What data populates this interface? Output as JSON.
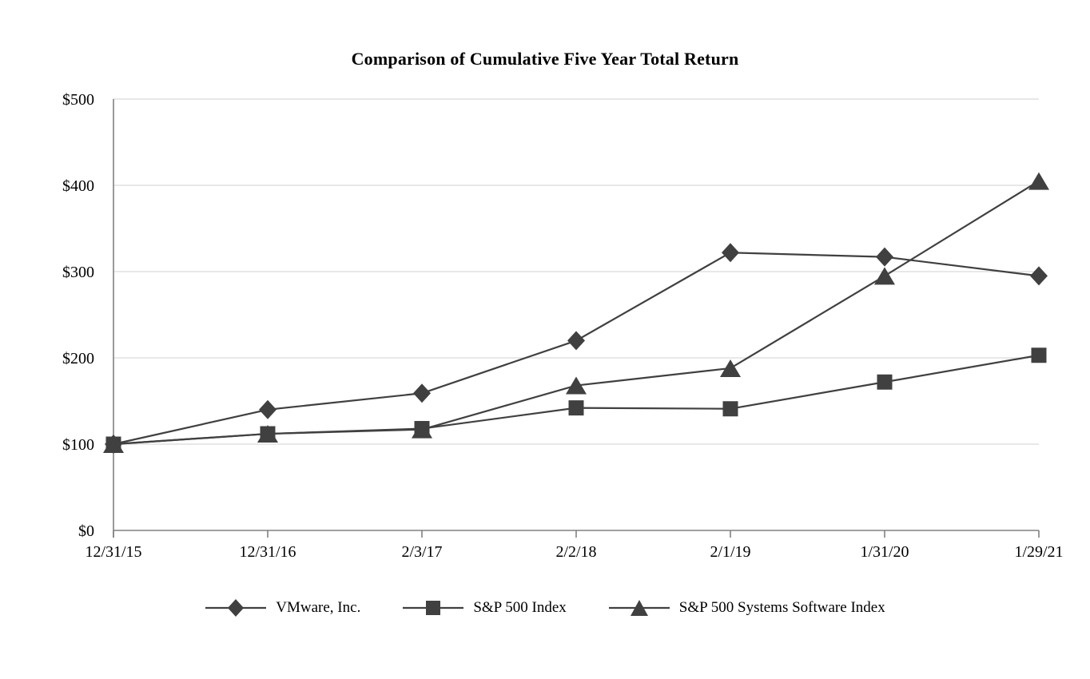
{
  "title": "Comparison of Cumulative Five Year Total Return",
  "chart_data": {
    "type": "line",
    "title": "Comparison of Cumulative Five Year Total Return",
    "categories": [
      "12/31/15",
      "12/31/16",
      "2/3/17",
      "2/2/18",
      "2/1/19",
      "1/31/20",
      "1/29/21"
    ],
    "series": [
      {
        "name": "VMware, Inc.",
        "marker": "diamond",
        "values": [
          100,
          140,
          159,
          220,
          322,
          317,
          295
        ]
      },
      {
        "name": "S&P 500 Index",
        "marker": "square",
        "values": [
          100,
          112,
          118,
          142,
          141,
          172,
          203
        ]
      },
      {
        "name": "S&P 500 Systems Software Index",
        "marker": "triangle",
        "values": [
          100,
          112,
          117,
          168,
          188,
          295,
          405
        ]
      }
    ],
    "xlabel": "",
    "ylabel": "",
    "ylim": [
      0,
      500
    ],
    "y_tick_values": [
      0,
      100,
      200,
      300,
      400,
      500
    ],
    "y_tick_labels": [
      "$0",
      "$100",
      "$200",
      "$300",
      "$400",
      "$500"
    ],
    "grid": "horizontal",
    "legend_position": "bottom",
    "colors": {
      "series": "#404040",
      "gridline": "#d9d9d9",
      "axis": "#808080",
      "text": "#000000",
      "background": "#ffffff"
    }
  }
}
